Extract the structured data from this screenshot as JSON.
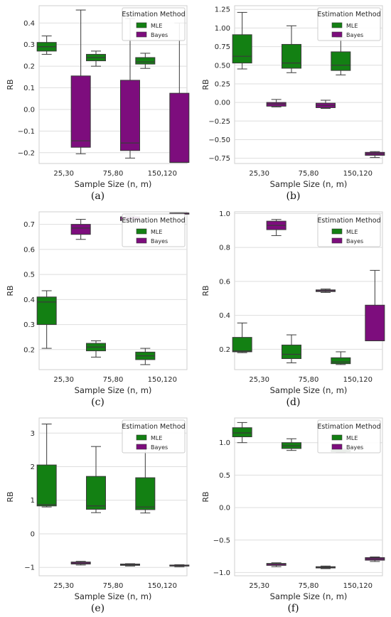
{
  "legend_title": "Estimation Method",
  "series_names": [
    "MLE",
    "Bayes"
  ],
  "colors": {
    "MLE": "#138013",
    "Bayes": "#7d0d7d"
  },
  "chart_data": [
    {
      "type": "box",
      "caption": "(a)",
      "ylabel": "RB",
      "xlabel": "Sample Size (n, m)",
      "categories": [
        "25,30",
        "75,80",
        "150,120"
      ],
      "ylim": [
        -0.25,
        0.48
      ],
      "yticks": [
        -0.2,
        -0.1,
        0.0,
        0.1,
        0.2,
        0.3,
        0.4
      ],
      "ytick_labels": [
        "−0.2",
        "−0.1",
        "0.0",
        "0.1",
        "0.2",
        "0.3",
        "0.4"
      ],
      "series": [
        {
          "name": "MLE",
          "boxes": [
            {
              "whisker_low": 0.255,
              "q1": 0.27,
              "median": 0.29,
              "q3": 0.31,
              "whisker_high": 0.34
            },
            {
              "whisker_low": 0.2,
              "q1": 0.225,
              "median": 0.24,
              "q3": 0.255,
              "whisker_high": 0.27
            },
            {
              "whisker_low": 0.19,
              "q1": 0.21,
              "median": 0.22,
              "q3": 0.24,
              "whisker_high": 0.26
            }
          ]
        },
        {
          "name": "Bayes",
          "boxes": [
            {
              "whisker_low": -0.205,
              "q1": -0.175,
              "median": -0.145,
              "q3": 0.155,
              "whisker_high": 0.46
            },
            {
              "whisker_low": -0.225,
              "q1": -0.19,
              "median": -0.155,
              "q3": 0.135,
              "whisker_high": 0.42
            },
            {
              "whisker_low": -0.245,
              "q1": -0.245,
              "median": -0.245,
              "q3": 0.075,
              "whisker_high": 0.4
            }
          ]
        }
      ]
    },
    {
      "type": "box",
      "caption": "(b)",
      "ylabel": "RB",
      "xlabel": "Sample Size (n, m)",
      "categories": [
        "25,30",
        "75,80",
        "150,120"
      ],
      "ylim": [
        -0.82,
        1.3
      ],
      "yticks": [
        -0.75,
        -0.5,
        -0.25,
        0.0,
        0.25,
        0.5,
        0.75,
        1.0,
        1.25
      ],
      "ytick_labels": [
        "−0.75",
        "−0.50",
        "−0.25",
        "0.00",
        "0.25",
        "0.50",
        "0.75",
        "1.00",
        "1.25"
      ],
      "series": [
        {
          "name": "MLE",
          "boxes": [
            {
              "whisker_low": 0.45,
              "q1": 0.53,
              "median": 0.62,
              "q3": 0.91,
              "whisker_high": 1.21
            },
            {
              "whisker_low": 0.4,
              "q1": 0.46,
              "median": 0.53,
              "q3": 0.78,
              "whisker_high": 1.03
            },
            {
              "whisker_low": 0.37,
              "q1": 0.43,
              "median": 0.5,
              "q3": 0.68,
              "whisker_high": 0.87
            }
          ]
        },
        {
          "name": "Bayes",
          "boxes": [
            {
              "whisker_low": -0.06,
              "q1": -0.05,
              "median": -0.02,
              "q3": -0.0,
              "whisker_high": 0.04
            },
            {
              "whisker_low": -0.08,
              "q1": -0.07,
              "median": -0.04,
              "q3": -0.01,
              "whisker_high": 0.03
            },
            {
              "whisker_low": -0.74,
              "q1": -0.71,
              "median": -0.69,
              "q3": -0.67,
              "whisker_high": -0.66
            }
          ]
        }
      ]
    },
    {
      "type": "box",
      "caption": "(c)",
      "ylabel": "RB",
      "xlabel": "Sample Size (n, m)",
      "categories": [
        "25,30",
        "75,80",
        "150,120"
      ],
      "ylim": [
        0.12,
        0.75
      ],
      "yticks": [
        0.2,
        0.3,
        0.4,
        0.5,
        0.6,
        0.7
      ],
      "ytick_labels": [
        "0.2",
        "0.3",
        "0.4",
        "0.5",
        "0.6",
        "0.7"
      ],
      "series": [
        {
          "name": "MLE",
          "boxes": [
            {
              "whisker_low": 0.205,
              "q1": 0.3,
              "median": 0.39,
              "q3": 0.41,
              "whisker_high": 0.435
            },
            {
              "whisker_low": 0.17,
              "q1": 0.195,
              "median": 0.21,
              "q3": 0.225,
              "whisker_high": 0.235
            },
            {
              "whisker_low": 0.14,
              "q1": 0.16,
              "median": 0.175,
              "q3": 0.19,
              "whisker_high": 0.205
            }
          ]
        },
        {
          "name": "Bayes",
          "boxes": [
            {
              "whisker_low": 0.64,
              "q1": 0.66,
              "median": 0.685,
              "q3": 0.7,
              "whisker_high": 0.72
            },
            {
              "whisker_low": 0.71,
              "q1": 0.715,
              "median": 0.72,
              "q3": 0.73,
              "whisker_high": 0.735
            },
            {
              "whisker_low": 0.745,
              "q1": 0.745,
              "median": 0.745,
              "q3": 0.745,
              "whisker_high": 0.745
            }
          ]
        }
      ]
    },
    {
      "type": "box",
      "caption": "(d)",
      "ylabel": "RB",
      "xlabel": "Sample Size (n, m)",
      "categories": [
        "25,30",
        "75,80",
        "150,120"
      ],
      "ylim": [
        0.08,
        1.01
      ],
      "yticks": [
        0.2,
        0.4,
        0.6,
        0.8,
        1.0
      ],
      "ytick_labels": [
        "0.2",
        "0.4",
        "0.6",
        "0.8",
        "1.0"
      ],
      "series": [
        {
          "name": "MLE",
          "boxes": [
            {
              "whisker_low": 0.18,
              "q1": 0.185,
              "median": 0.19,
              "q3": 0.27,
              "whisker_high": 0.355
            },
            {
              "whisker_low": 0.12,
              "q1": 0.145,
              "median": 0.17,
              "q3": 0.225,
              "whisker_high": 0.285
            },
            {
              "whisker_low": 0.11,
              "q1": 0.115,
              "median": 0.125,
              "q3": 0.15,
              "whisker_high": 0.185
            }
          ]
        },
        {
          "name": "Bayes",
          "boxes": [
            {
              "whisker_low": 0.87,
              "q1": 0.905,
              "median": 0.93,
              "q3": 0.955,
              "whisker_high": 0.965
            },
            {
              "whisker_low": 0.535,
              "q1": 0.54,
              "median": 0.545,
              "q3": 0.55,
              "whisker_high": 0.555
            },
            {
              "whisker_low": 0.25,
              "q1": 0.25,
              "median": 0.25,
              "q3": 0.46,
              "whisker_high": 0.665
            }
          ]
        }
      ]
    },
    {
      "type": "box",
      "caption": "(e)",
      "ylabel": "RB",
      "xlabel": "Sample Size (n, m)",
      "categories": [
        "25,30",
        "75,80",
        "150,120"
      ],
      "ylim": [
        -1.25,
        3.45
      ],
      "yticks": [
        -1,
        0,
        1,
        2,
        3
      ],
      "ytick_labels": [
        "−1",
        "0",
        "1",
        "2",
        "3"
      ],
      "series": [
        {
          "name": "MLE",
          "boxes": [
            {
              "whisker_low": 0.8,
              "q1": 0.83,
              "median": 0.87,
              "q3": 2.05,
              "whisker_high": 3.27
            },
            {
              "whisker_low": 0.63,
              "q1": 0.73,
              "median": 0.83,
              "q3": 1.71,
              "whisker_high": 2.6
            },
            {
              "whisker_low": 0.62,
              "q1": 0.72,
              "median": 0.8,
              "q3": 1.67,
              "whisker_high": 2.55
            }
          ]
        },
        {
          "name": "Bayes",
          "boxes": [
            {
              "whisker_low": -0.93,
              "q1": -0.9,
              "median": -0.87,
              "q3": -0.84,
              "whisker_high": -0.82
            },
            {
              "whisker_low": -0.96,
              "q1": -0.94,
              "median": -0.92,
              "q3": -0.9,
              "whisker_high": -0.89
            },
            {
              "whisker_low": -0.98,
              "q1": -0.96,
              "median": -0.95,
              "q3": -0.93,
              "whisker_high": -0.92
            }
          ]
        }
      ]
    },
    {
      "type": "box",
      "caption": "(f)",
      "ylabel": "RB",
      "xlabel": "Sample Size (n, m)",
      "categories": [
        "25,30",
        "75,80",
        "150,120"
      ],
      "ylim": [
        -1.05,
        1.38
      ],
      "yticks": [
        -1.0,
        -0.5,
        0.0,
        0.5,
        1.0
      ],
      "ytick_labels": [
        "−1.0",
        "−0.5",
        "0.0",
        "0.5",
        "1.0"
      ],
      "series": [
        {
          "name": "MLE",
          "boxes": [
            {
              "whisker_low": 1.0,
              "q1": 1.09,
              "median": 1.15,
              "q3": 1.23,
              "whisker_high": 1.31
            },
            {
              "whisker_low": 0.88,
              "q1": 0.91,
              "median": 0.95,
              "q3": 1.0,
              "whisker_high": 1.06
            },
            {
              "whisker_low": 0.85,
              "q1": 0.86,
              "median": 0.88,
              "q3": 0.89,
              "whisker_high": 0.91
            }
          ]
        },
        {
          "name": "Bayes",
          "boxes": [
            {
              "whisker_low": -0.91,
              "q1": -0.89,
              "median": -0.87,
              "q3": -0.86,
              "whisker_high": -0.85
            },
            {
              "whisker_low": -0.94,
              "q1": -0.93,
              "median": -0.92,
              "q3": -0.91,
              "whisker_high": -0.9
            },
            {
              "whisker_low": -0.83,
              "q1": -0.81,
              "median": -0.79,
              "q3": -0.77,
              "whisker_high": -0.76
            }
          ]
        }
      ]
    }
  ]
}
